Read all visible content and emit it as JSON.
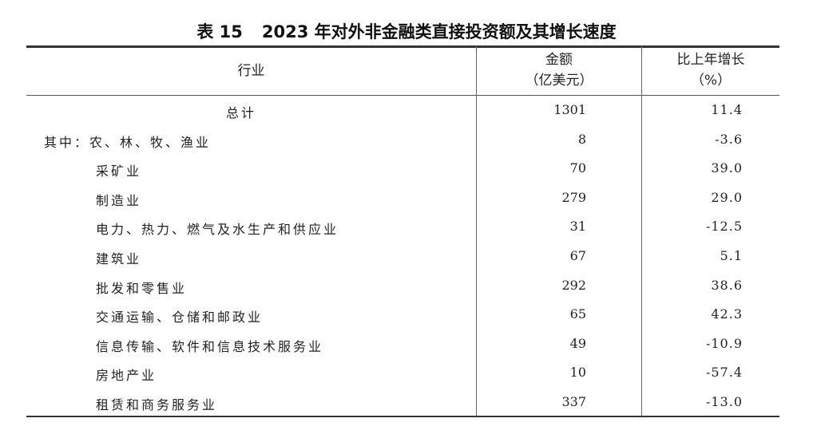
{
  "title": {
    "table_no": "表 15",
    "text": "2023 年对外非金融类直接投资额及其增长速度"
  },
  "headers": {
    "industry": "行业",
    "amount": "金额",
    "amount_unit": "（亿美元）",
    "growth": "比上年增长",
    "growth_unit": "（%）"
  },
  "rows": [
    {
      "label": "总计",
      "amount": "1301",
      "growth": "11.4"
    },
    {
      "label": "其中：农、林、牧、渔业",
      "amount": "8",
      "growth": "-3.6"
    },
    {
      "label": "采矿业",
      "amount": "70",
      "growth": "39.0"
    },
    {
      "label": "制造业",
      "amount": "279",
      "growth": "29.0"
    },
    {
      "label": "电力、热力、燃气及水生产和供应业",
      "amount": "31",
      "growth": "-12.5"
    },
    {
      "label": "建筑业",
      "amount": "67",
      "growth": "5.1"
    },
    {
      "label": "批发和零售业",
      "amount": "292",
      "growth": "38.6"
    },
    {
      "label": "交通运输、仓储和邮政业",
      "amount": "65",
      "growth": "42.3"
    },
    {
      "label": "信息传输、软件和信息技术服务业",
      "amount": "49",
      "growth": "-10.9"
    },
    {
      "label": "房地产业",
      "amount": "10",
      "growth": "-57.4"
    },
    {
      "label": "租赁和商务服务业",
      "amount": "337",
      "growth": "-13.0"
    }
  ]
}
